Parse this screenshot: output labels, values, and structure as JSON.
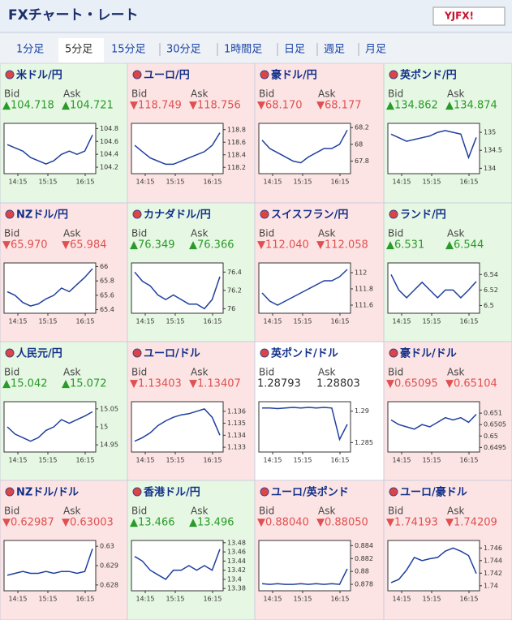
{
  "header": {
    "title": "FXチャート・レート",
    "logo": "YJFX!"
  },
  "tabs": [
    "1分足",
    "5分足",
    "15分足",
    "30分足",
    "1時間足",
    "日足",
    "週足",
    "月足"
  ],
  "selected_tab": 1,
  "bid_label": "Bid",
  "ask_label": "Ask",
  "cells": [
    {
      "title": "米ドル/円",
      "bid": "▲104.718",
      "ask": "▲104.721",
      "trend": "up",
      "chart": {
        "type": "line",
        "ylim": [
          104.1,
          104.88
        ],
        "yticks": [
          104.8,
          104.6,
          104.4,
          104.2
        ],
        "xlabels": [
          "14:15",
          "15:15",
          "16:15"
        ],
        "values": [
          104.55,
          104.5,
          104.45,
          104.35,
          104.3,
          104.25,
          104.3,
          104.4,
          104.45,
          104.4,
          104.45,
          104.7
        ]
      }
    },
    {
      "title": "ユーロ/円",
      "bid": "▼118.749",
      "ask": "▼118.756",
      "trend": "down",
      "chart": {
        "type": "line",
        "ylim": [
          118.1,
          118.9
        ],
        "yticks": [
          118.8,
          118.6,
          118.4,
          118.2
        ],
        "xlabels": [
          "14:15",
          "15:15",
          "16:15"
        ],
        "values": [
          118.55,
          118.45,
          118.35,
          118.3,
          118.25,
          118.25,
          118.3,
          118.35,
          118.4,
          118.45,
          118.55,
          118.75
        ]
      }
    },
    {
      "title": "豪ドル/円",
      "bid": "▼68.170",
      "ask": "▼68.177",
      "trend": "down",
      "chart": {
        "type": "line",
        "ylim": [
          67.65,
          68.25
        ],
        "yticks": [
          68.2,
          68,
          67.8
        ],
        "xlabels": [
          "14:15",
          "15:15",
          "16:15"
        ],
        "values": [
          68.05,
          67.95,
          67.9,
          67.85,
          67.8,
          67.78,
          67.85,
          67.9,
          67.95,
          67.95,
          68.0,
          68.17
        ]
      }
    },
    {
      "title": "英ポンド/円",
      "bid": "▲134.862",
      "ask": "▲134.874",
      "trend": "up",
      "chart": {
        "type": "line",
        "ylim": [
          133.85,
          135.25
        ],
        "yticks": [
          135,
          134.5,
          134
        ],
        "xlabels": [
          "14:15",
          "15:15",
          "16:15"
        ],
        "values": [
          134.95,
          134.85,
          134.75,
          134.8,
          134.85,
          134.9,
          135.0,
          135.05,
          135.0,
          134.95,
          134.3,
          134.86
        ]
      }
    },
    {
      "title": "NZドル/円",
      "bid": "▼65.970",
      "ask": "▼65.984",
      "trend": "down",
      "chart": {
        "type": "line",
        "ylim": [
          65.35,
          66.05
        ],
        "yticks": [
          66,
          65.8,
          65.6,
          65.4
        ],
        "xlabels": [
          "14:15",
          "15:15",
          "16:15"
        ],
        "values": [
          65.65,
          65.6,
          65.5,
          65.45,
          65.48,
          65.55,
          65.6,
          65.7,
          65.65,
          65.75,
          65.85,
          65.97
        ]
      }
    },
    {
      "title": "カナダドル/円",
      "bid": "▲76.349",
      "ask": "▲76.366",
      "trend": "up",
      "chart": {
        "type": "line",
        "ylim": [
          75.95,
          76.5
        ],
        "yticks": [
          76.4,
          76.2,
          76
        ],
        "xlabels": [
          "14:15",
          "15:15",
          "16:15"
        ],
        "values": [
          76.4,
          76.3,
          76.25,
          76.15,
          76.1,
          76.15,
          76.1,
          76.05,
          76.05,
          76.0,
          76.1,
          76.35
        ]
      }
    },
    {
      "title": "スイスフラン/円",
      "bid": "▼112.040",
      "ask": "▼112.058",
      "trend": "down",
      "chart": {
        "type": "line",
        "ylim": [
          111.5,
          112.12
        ],
        "yticks": [
          112,
          111.8,
          111.6
        ],
        "xlabels": [
          "14:15",
          "15:15",
          "16:15"
        ],
        "values": [
          111.75,
          111.65,
          111.6,
          111.65,
          111.7,
          111.75,
          111.8,
          111.85,
          111.9,
          111.9,
          111.95,
          112.04
        ]
      }
    },
    {
      "title": "ランド/円",
      "bid": "▲6.531",
      "ask": "▲6.544",
      "trend": "up",
      "chart": {
        "type": "line",
        "ylim": [
          6.49,
          6.555
        ],
        "yticks": [
          6.54,
          6.52,
          6.5
        ],
        "xlabels": [
          "14:15",
          "15:15",
          "16:15"
        ],
        "values": [
          6.54,
          6.52,
          6.51,
          6.52,
          6.53,
          6.52,
          6.51,
          6.52,
          6.52,
          6.51,
          6.52,
          6.531
        ]
      }
    },
    {
      "title": "人民元/円",
      "bid": "▲15.042",
      "ask": "▲15.072",
      "trend": "up",
      "chart": {
        "type": "line",
        "ylim": [
          14.93,
          15.07
        ],
        "yticks": [
          15.05,
          15,
          14.95
        ],
        "xlabels": [
          "14:15",
          "15:15",
          "16:15"
        ],
        "values": [
          15.0,
          14.98,
          14.97,
          14.96,
          14.97,
          14.99,
          15.0,
          15.02,
          15.01,
          15.02,
          15.03,
          15.042
        ]
      }
    },
    {
      "title": "ユーロ/ドル",
      "bid": "▼1.13403",
      "ask": "▼1.13407",
      "trend": "down",
      "chart": {
        "type": "line",
        "ylim": [
          1.1326,
          1.1368
        ],
        "yticks": [
          1.136,
          1.135,
          1.134,
          1.133
        ],
        "xlabels": [
          "14:15",
          "15:15",
          "16:15"
        ],
        "values": [
          1.1335,
          1.1338,
          1.1342,
          1.1348,
          1.1352,
          1.1355,
          1.1357,
          1.1358,
          1.136,
          1.1362,
          1.1355,
          1.134
        ]
      }
    },
    {
      "title": "英ポンド/ドル",
      "bid": "1.28793",
      "ask": "1.28803",
      "trend": "flat",
      "chart": {
        "type": "line",
        "ylim": [
          1.2835,
          1.2915
        ],
        "yticks": [
          1.29,
          1.285
        ],
        "xlabels": [
          "14:15",
          "15:15",
          "16:15"
        ],
        "values": [
          1.2905,
          1.2905,
          1.2904,
          1.2905,
          1.2906,
          1.2905,
          1.2906,
          1.2905,
          1.2906,
          1.2905,
          1.2855,
          1.2879
        ]
      }
    },
    {
      "title": "豪ドル/ドル",
      "bid": "▼0.65095",
      "ask": "▼0.65104",
      "trend": "down",
      "chart": {
        "type": "line",
        "ylim": [
          0.6493,
          0.6515
        ],
        "yticks": [
          0.651,
          0.6505,
          0.65,
          0.6495
        ],
        "xlabels": [
          "14:15",
          "15:15",
          "16:15"
        ],
        "values": [
          0.6507,
          0.6505,
          0.6504,
          0.6503,
          0.6505,
          0.6504,
          0.6506,
          0.6508,
          0.6507,
          0.6508,
          0.6506,
          0.65095
        ]
      }
    },
    {
      "title": "NZドル/ドル",
      "bid": "▼0.62987",
      "ask": "▼0.63003",
      "trend": "down",
      "chart": {
        "type": "line",
        "ylim": [
          0.6277,
          0.6303
        ],
        "yticks": [
          0.63,
          0.629,
          0.628
        ],
        "xlabels": [
          "14:15",
          "15:15",
          "16:15"
        ],
        "values": [
          0.6285,
          0.6286,
          0.6287,
          0.6286,
          0.6286,
          0.6287,
          0.6286,
          0.6287,
          0.6287,
          0.6286,
          0.6287,
          0.62987
        ]
      }
    },
    {
      "title": "香港ドル/円",
      "bid": "▲13.466",
      "ask": "▲13.496",
      "trend": "up",
      "chart": {
        "type": "line",
        "ylim": [
          13.375,
          13.485
        ],
        "yticks": [
          13.48,
          13.46,
          13.44,
          13.42,
          13.4,
          13.38
        ],
        "xlabels": [
          "14:15",
          "15:15",
          "16:15"
        ],
        "values": [
          13.45,
          13.44,
          13.42,
          13.41,
          13.4,
          13.42,
          13.42,
          13.43,
          13.42,
          13.43,
          13.42,
          13.466
        ]
      }
    },
    {
      "title": "ユーロ/英ポンド",
      "bid": "▼0.88040",
      "ask": "▼0.88050",
      "trend": "down",
      "chart": {
        "type": "line",
        "ylim": [
          0.877,
          0.8848
        ],
        "yticks": [
          0.884,
          0.882,
          0.88,
          0.878
        ],
        "xlabels": [
          "14:15",
          "15:15",
          "16:15"
        ],
        "values": [
          0.8781,
          0.878,
          0.8781,
          0.878,
          0.878,
          0.8781,
          0.878,
          0.8781,
          0.878,
          0.8781,
          0.878,
          0.8804
        ]
      }
    },
    {
      "title": "ユーロ/豪ドル",
      "bid": "▼1.74193",
      "ask": "▼1.74209",
      "trend": "down",
      "chart": {
        "type": "line",
        "ylim": [
          1.7392,
          1.7472
        ],
        "yticks": [
          1.746,
          1.744,
          1.742,
          1.74
        ],
        "xlabels": [
          "14:15",
          "15:15",
          "16:15"
        ],
        "values": [
          1.7405,
          1.741,
          1.7425,
          1.7445,
          1.744,
          1.7443,
          1.7445,
          1.7455,
          1.746,
          1.7455,
          1.7448,
          1.74193
        ]
      }
    }
  ]
}
